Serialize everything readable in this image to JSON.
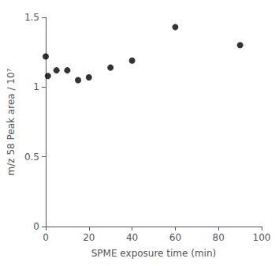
{
  "chart_data": {
    "type": "scatter",
    "x": [
      0,
      1,
      5,
      10,
      15,
      20,
      30,
      40,
      60,
      90
    ],
    "values": [
      1.22,
      1.08,
      1.12,
      1.12,
      1.05,
      1.07,
      1.14,
      1.19,
      1.43,
      1.3
    ],
    "xlabel": "SPME exposure time (min)",
    "ylabel": "m/z 58 Peak area / 10⁷",
    "xlim": [
      0,
      100
    ],
    "ylim": [
      0,
      1.5
    ],
    "xticks": [
      0,
      20,
      40,
      60,
      80,
      100
    ],
    "yticks": [
      0,
      0.5,
      1,
      1.5
    ],
    "color": "black",
    "marker": "circle",
    "grid": false
  }
}
